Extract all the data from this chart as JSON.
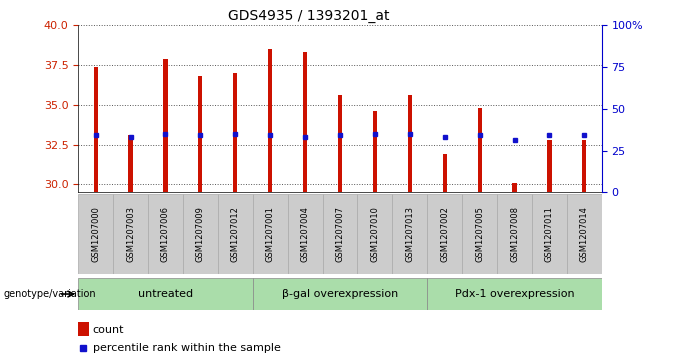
{
  "title": "GDS4935 / 1393201_at",
  "samples": [
    "GSM1207000",
    "GSM1207003",
    "GSM1207006",
    "GSM1207009",
    "GSM1207012",
    "GSM1207001",
    "GSM1207004",
    "GSM1207007",
    "GSM1207010",
    "GSM1207013",
    "GSM1207002",
    "GSM1207005",
    "GSM1207008",
    "GSM1207011",
    "GSM1207014"
  ],
  "counts": [
    37.4,
    33.1,
    37.9,
    36.8,
    37.0,
    38.5,
    38.3,
    35.6,
    34.6,
    35.6,
    31.9,
    34.8,
    30.1,
    32.8,
    32.8
  ],
  "percentiles": [
    33.1,
    33.0,
    33.2,
    33.1,
    33.2,
    33.1,
    33.0,
    33.1,
    33.2,
    33.2,
    33.0,
    33.1,
    32.8,
    33.1,
    33.1
  ],
  "groups": [
    {
      "label": "untreated",
      "start": 0,
      "end": 5
    },
    {
      "label": "β-gal overexpression",
      "start": 5,
      "end": 10
    },
    {
      "label": "Pdx-1 overexpression",
      "start": 10,
      "end": 15
    }
  ],
  "ylim_left": [
    29.5,
    40.0
  ],
  "ylim_right": [
    0,
    100
  ],
  "yticks_left": [
    30,
    32.5,
    35,
    37.5,
    40
  ],
  "yticks_right": [
    0,
    25,
    50,
    75,
    100
  ],
  "bar_color": "#cc1100",
  "dot_color": "#1111cc",
  "bar_width": 0.12,
  "background_color": "#ffffff",
  "grid_color": "#000000",
  "title_fontsize": 10,
  "tick_fontsize": 8,
  "label_fontsize": 7,
  "group_green_light": "#bbeeaa",
  "group_green_mid": "#88cc88",
  "group_green_dark": "#44aa44",
  "gray_box": "#cccccc",
  "gray_box_border": "#999999"
}
